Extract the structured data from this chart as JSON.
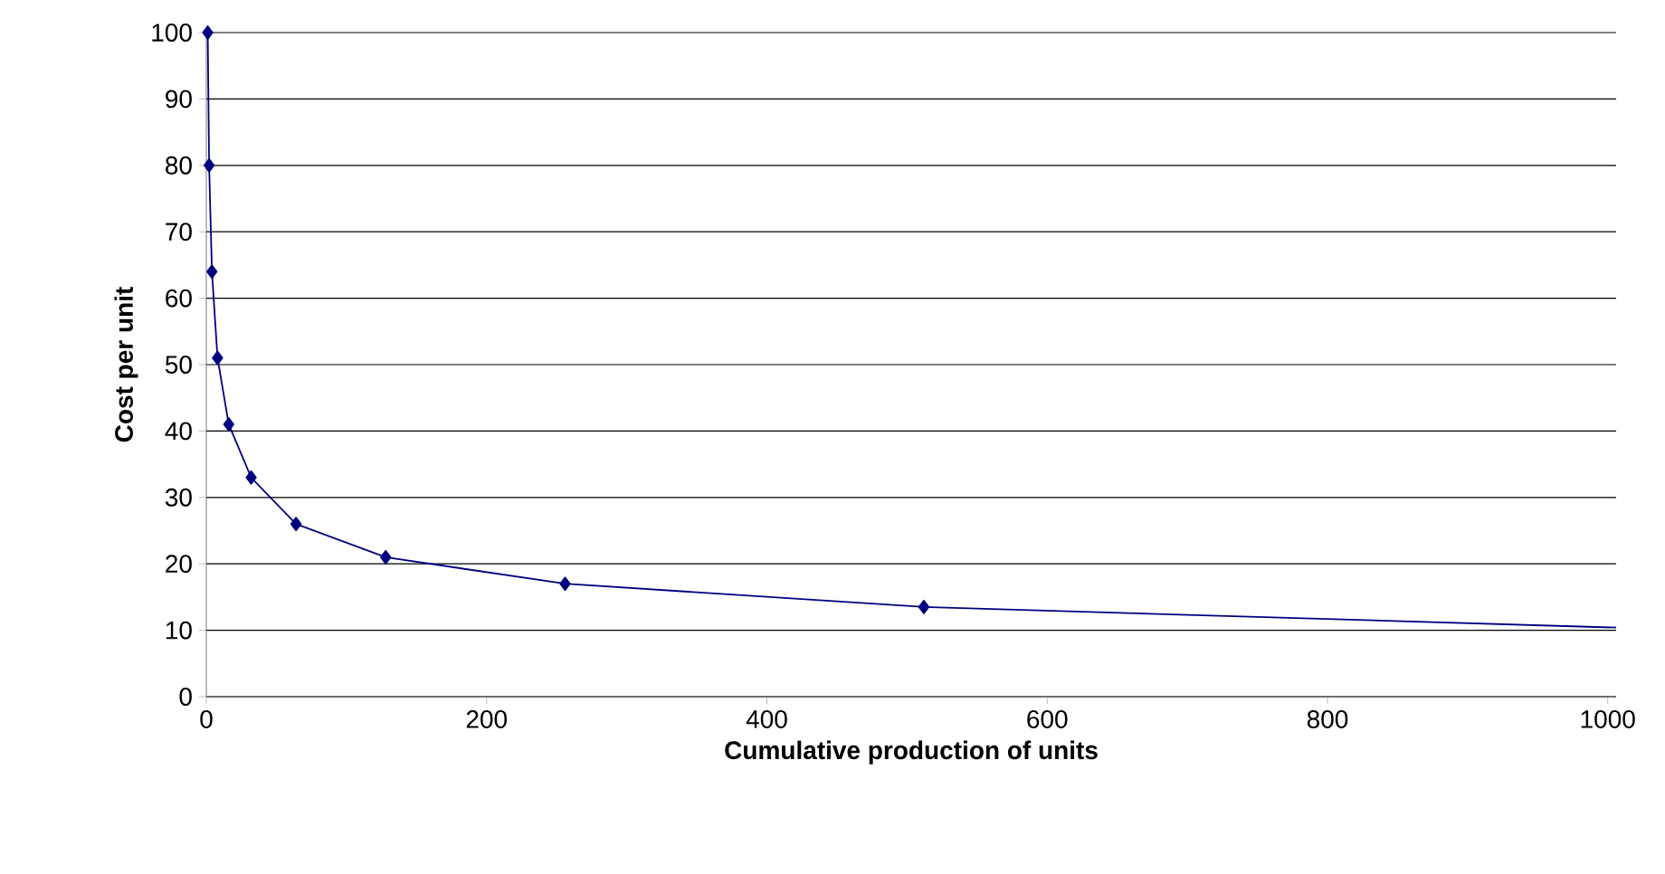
{
  "chart_data": {
    "type": "line",
    "xlabel": "Cumulative production of units",
    "ylabel": "Cost per unit",
    "series": [
      {
        "color": "#000080",
        "marker": "diamond",
        "x": [
          1,
          2,
          4,
          8,
          16,
          32,
          64,
          128,
          256,
          512
        ],
        "values": [
          100,
          80,
          64,
          51,
          41,
          33,
          26,
          21,
          17,
          13.5
        ]
      },
      {
        "color": "#000080",
        "marker": "none",
        "x": [
          512,
          1006
        ],
        "values": [
          13.5,
          10.4
        ]
      }
    ],
    "xlim": [
      0,
      1006
    ],
    "ylim": [
      0,
      100
    ],
    "xticks": [
      0,
      200,
      400,
      600,
      800,
      1000
    ],
    "yticks": [
      0,
      10,
      20,
      30,
      40,
      50,
      60,
      70,
      80,
      90,
      100
    ],
    "grid": "y"
  }
}
